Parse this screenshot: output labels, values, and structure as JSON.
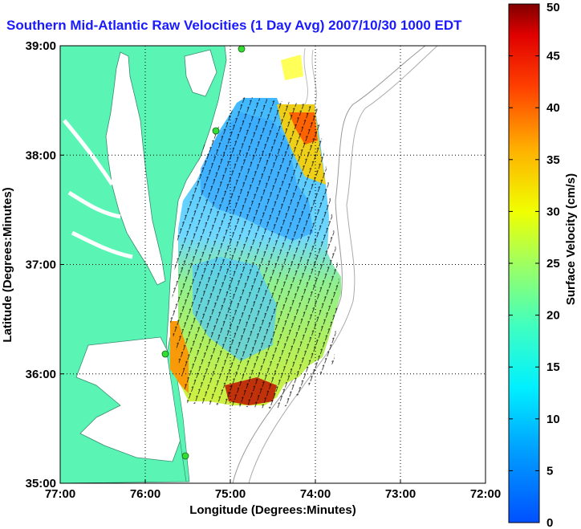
{
  "title": "Southern Mid-Atlantic Raw Velocities (1 Day Avg) 2007/10/30 1000 EDT",
  "map": {
    "xlabel": "Longitude (Degrees:Minutes)",
    "ylabel": "Latitude (Degrees:Minutes)",
    "lon_range": [
      -77,
      -72
    ],
    "lat_range": [
      35,
      39
    ],
    "lon_ticks": [
      {
        "value": -77,
        "label": "77:00"
      },
      {
        "value": -76,
        "label": "76:00"
      },
      {
        "value": -75,
        "label": "75:00"
      },
      {
        "value": -74,
        "label": "74:00"
      },
      {
        "value": -73,
        "label": "73:00"
      },
      {
        "value": -72,
        "label": "72:00"
      }
    ],
    "lat_ticks": [
      {
        "value": 35,
        "label": "35:00"
      },
      {
        "value": 36,
        "label": "36:00"
      },
      {
        "value": 37,
        "label": "37:00"
      },
      {
        "value": 38,
        "label": "38:00"
      },
      {
        "value": 39,
        "label": "39:00"
      }
    ],
    "grid": "dotted",
    "land_color": "#5af5b4",
    "station_color": "#33dd33"
  },
  "colorbar": {
    "label": "Surface Velocity (cm/s)",
    "range": [
      0,
      50
    ],
    "ticks": [
      {
        "value": 0,
        "label": "0"
      },
      {
        "value": 5,
        "label": "5"
      },
      {
        "value": 10,
        "label": "10"
      },
      {
        "value": 15,
        "label": "15"
      },
      {
        "value": 20,
        "label": "20"
      },
      {
        "value": 25,
        "label": "25"
      },
      {
        "value": 30,
        "label": "30"
      },
      {
        "value": 35,
        "label": "35"
      },
      {
        "value": 40,
        "label": "40"
      },
      {
        "value": 45,
        "label": "45"
      },
      {
        "value": 50,
        "label": "50"
      }
    ],
    "colormap": "jet"
  }
}
